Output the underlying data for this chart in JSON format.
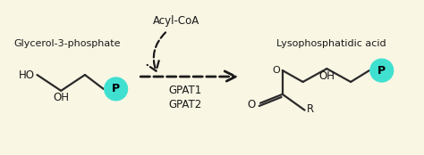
{
  "background_color": "#faf6e4",
  "arrow_color": "#1a1a1a",
  "dashed_color": "#1a1a1a",
  "circle_color": "#40e0d0",
  "circle_text": "P",
  "gpat_label": "GPAT1\nGPAT2",
  "acylcoa_label": "Acyl-CoA",
  "left_molecule_label": "Glycerol-3-phosphate",
  "right_molecule_label": "Lysophosphatidic acid",
  "line_color": "#2a2a2a",
  "text_color": "#1a1a1a",
  "figsize": [
    4.74,
    1.74
  ],
  "dpi": 100
}
